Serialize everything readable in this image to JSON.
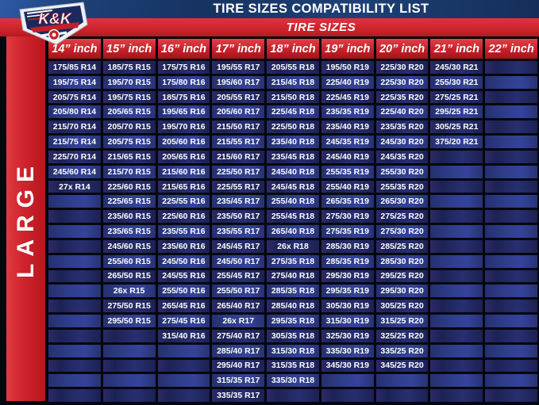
{
  "header": {
    "title": "TIRE SIZES COMPATIBILITY LIST",
    "band_label": "TIRE SIZES",
    "logo_text": "K&K"
  },
  "sidebar": {
    "category_label": "LARGE"
  },
  "colors": {
    "band_blue": "#163361",
    "accent_red": "#c8212a",
    "cell_dark_navy": "#1d2255",
    "cell_royal_blue": "#2e3d8a",
    "text_white": "#ffffff"
  },
  "table": {
    "row_count": 23,
    "columns": [
      {
        "label": "14” inch",
        "sizes": [
          "175/85 R14",
          "195/75 R14",
          "205/75 R14",
          "205/80 R14",
          "215/70 R14",
          "215/75 R14",
          "225/70 R14",
          "245/60 R14",
          "27x R14"
        ]
      },
      {
        "label": "15” inch",
        "sizes": [
          "185/75 R15",
          "195/70 R15",
          "195/75 R15",
          "205/65 R15",
          "205/70 R15",
          "205/75 R15",
          "215/65 R15",
          "215/70 R15",
          "225/60 R15",
          "225/65 R15",
          "235/60 R15",
          "235/65 R15",
          "245/60 R15",
          "255/60 R15",
          "265/50 R15",
          "26x R15",
          "275/50 R15",
          "295/50 R15"
        ]
      },
      {
        "label": "16” inch",
        "sizes": [
          "175/75 R16",
          "175/80 R16",
          "185/75 R16",
          "195/65 R16",
          "195/70 R16",
          "205/60 R16",
          "205/65 R16",
          "215/60 R16",
          "215/65 R16",
          "225/55 R16",
          "225/60 R16",
          "235/55 R16",
          "235/60 R16",
          "245/50 R16",
          "245/55 R16",
          "255/50 R16",
          "265/45 R16",
          "275/45 R16",
          "315/40 R16"
        ]
      },
      {
        "label": "17” inch",
        "sizes": [
          "195/55 R17",
          "195/60 R17",
          "205/55 R17",
          "205/60 R17",
          "215/50 R17",
          "215/55 R17",
          "215/60 R17",
          "225/50 R17",
          "225/55 R17",
          "235/45 R17",
          "235/50 R17",
          "235/55 R17",
          "245/45 R17",
          "245/50 R17",
          "255/45 R17",
          "255/50 R17",
          "265/40 R17",
          "26x R17",
          "275/40 R17",
          "285/40 R17",
          "295/40 R17",
          "315/35 R17",
          "335/35 R17"
        ]
      },
      {
        "label": "18” inch",
        "sizes": [
          "205/55 R18",
          "215/45 R18",
          "215/50 R18",
          "225/45 R18",
          "225/50 R18",
          "235/40 R18",
          "235/45 R18",
          "245/40 R18",
          "245/45 R18",
          "255/40 R18",
          "255/45 R18",
          "265/40 R18",
          "26x R18",
          "275/35 R18",
          "275/40 R18",
          "285/35 R18",
          "285/40 R18",
          "295/35 R18",
          "305/35 R18",
          "315/30 R18",
          "315/35 R18",
          "335/30 R18"
        ]
      },
      {
        "label": "19” inch",
        "sizes": [
          "195/50 R19",
          "225/40 R19",
          "225/45 R19",
          "235/35 R19",
          "235/40 R19",
          "245/35 R19",
          "245/40 R19",
          "255/35 R19",
          "255/40 R19",
          "265/35 R19",
          "275/30 R19",
          "275/35 R19",
          "285/30 R19",
          "285/35 R19",
          "295/30 R19",
          "295/35 R19",
          "305/30 R19",
          "315/30 R19",
          "325/30 R19",
          "335/30 R19",
          "345/30 R19"
        ]
      },
      {
        "label": "20” inch",
        "sizes": [
          "225/30 R20",
          "225/30 R20",
          "225/35 R20",
          "225/40 R20",
          "235/35 R20",
          "245/30 R20",
          "245/35 R20",
          "255/30 R20",
          "255/35 R20",
          "265/30 R20",
          "275/25 R20",
          "275/30 R20",
          "285/25 R20",
          "285/30 R20",
          "295/25 R20",
          "295/30 R20",
          "305/25 R20",
          "315/25 R20",
          "325/25 R20",
          "335/25 R20",
          "345/25 R20"
        ]
      },
      {
        "label": "21” inch",
        "sizes": [
          "245/30 R21",
          "255/30 R21",
          "275/25 R21",
          "295/25 R21",
          "305/25 R21",
          "375/20 R21"
        ]
      },
      {
        "label": "22” inch",
        "sizes": []
      }
    ]
  }
}
